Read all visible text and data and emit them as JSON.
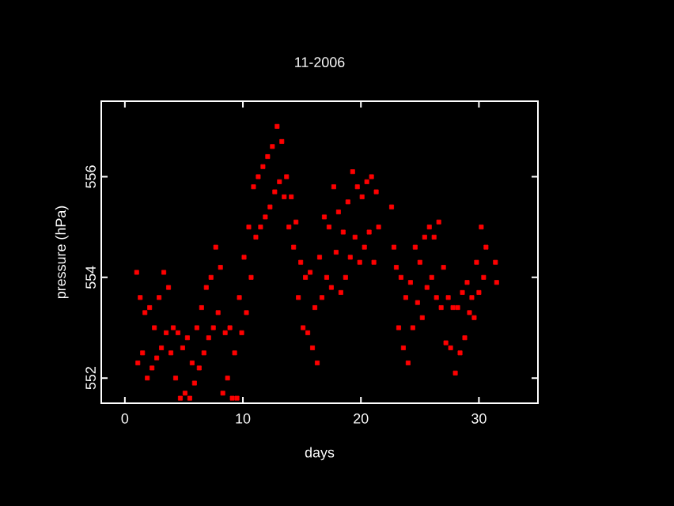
{
  "chart_data": {
    "type": "scatter",
    "title": "11-2006",
    "xlabel": "days",
    "ylabel": "pressure (hPa)",
    "xlim": [
      -2,
      35
    ],
    "ylim": [
      551.5,
      557.5
    ],
    "xticks": [
      0,
      10,
      20,
      30
    ],
    "yticks": [
      552,
      554,
      556
    ],
    "marker": "square",
    "grid": false,
    "series": [
      {
        "color": "#ff0000",
        "x": [
          1.0,
          1.1,
          1.3,
          1.5,
          1.7,
          1.9,
          2.1,
          2.3,
          2.5,
          2.7,
          2.9,
          3.1,
          3.3,
          3.5,
          3.7,
          3.9,
          4.1,
          4.3,
          4.5,
          4.7,
          4.9,
          5.1,
          5.3,
          5.5,
          5.7,
          5.9,
          6.1,
          6.3,
          6.5,
          6.7,
          6.9,
          7.1,
          7.3,
          7.5,
          7.7,
          7.9,
          8.1,
          8.3,
          8.5,
          8.7,
          8.9,
          9.1,
          9.3,
          9.5,
          9.7,
          9.9,
          10.1,
          10.3,
          10.5,
          10.7,
          10.9,
          11.1,
          11.3,
          11.5,
          11.7,
          11.9,
          12.1,
          12.3,
          12.5,
          12.7,
          12.9,
          13.1,
          13.3,
          13.5,
          13.7,
          13.9,
          14.1,
          14.3,
          14.5,
          14.7,
          14.9,
          15.1,
          15.3,
          15.5,
          15.7,
          15.9,
          16.1,
          16.3,
          16.5,
          16.7,
          16.9,
          17.1,
          17.3,
          17.5,
          17.7,
          17.9,
          18.1,
          18.3,
          18.5,
          18.7,
          18.9,
          19.1,
          19.3,
          19.5,
          19.7,
          19.9,
          20.1,
          20.3,
          20.5,
          20.7,
          20.9,
          21.1,
          21.3,
          21.5,
          22.6,
          22.8,
          23.0,
          23.2,
          23.4,
          23.6,
          23.8,
          24.0,
          24.2,
          24.4,
          24.6,
          24.8,
          25.0,
          25.2,
          25.4,
          25.6,
          25.8,
          26.0,
          26.2,
          26.4,
          26.6,
          26.8,
          27.0,
          27.2,
          27.4,
          27.6,
          27.8,
          28.0,
          28.2,
          28.4,
          28.6,
          28.8,
          29.0,
          29.2,
          29.4,
          29.6,
          29.8,
          30.0,
          30.2,
          30.4,
          30.6,
          31.4,
          31.5
        ],
        "values": [
          554.1,
          552.3,
          553.6,
          552.5,
          553.3,
          552.0,
          553.4,
          552.2,
          553.0,
          552.4,
          553.6,
          552.6,
          554.1,
          552.9,
          553.8,
          552.5,
          553.0,
          552.0,
          552.9,
          551.6,
          552.6,
          551.7,
          552.8,
          551.6,
          552.3,
          551.9,
          553.0,
          552.2,
          553.4,
          552.5,
          553.8,
          552.8,
          554.0,
          553.0,
          554.6,
          553.3,
          554.2,
          551.7,
          552.9,
          552.0,
          553.0,
          551.6,
          552.5,
          551.6,
          553.6,
          552.9,
          554.4,
          553.3,
          555.0,
          554.0,
          555.8,
          554.8,
          556.0,
          555.0,
          556.2,
          555.2,
          556.4,
          555.4,
          556.6,
          555.7,
          557.0,
          555.9,
          556.7,
          555.6,
          556.0,
          555.0,
          555.6,
          554.6,
          555.1,
          553.6,
          554.3,
          553.0,
          554.0,
          552.9,
          554.1,
          552.6,
          553.4,
          552.3,
          554.4,
          553.6,
          555.2,
          554.0,
          555.0,
          553.8,
          555.8,
          554.5,
          555.3,
          553.7,
          554.9,
          554.0,
          555.5,
          554.4,
          556.1,
          554.8,
          555.8,
          554.3,
          555.6,
          554.6,
          555.9,
          554.9,
          556.0,
          554.3,
          555.7,
          555.0,
          555.4,
          554.6,
          554.2,
          553.0,
          554.0,
          552.6,
          553.6,
          552.3,
          553.9,
          553.0,
          554.6,
          553.5,
          554.3,
          553.2,
          554.8,
          553.8,
          555.0,
          554.0,
          554.8,
          553.6,
          555.1,
          553.4,
          554.2,
          552.7,
          553.6,
          552.6,
          553.4,
          552.1,
          553.4,
          552.5,
          553.7,
          552.8,
          553.9,
          553.3,
          553.6,
          553.2,
          554.3,
          553.7,
          555.0,
          554.0,
          554.6,
          554.3,
          553.9
        ]
      }
    ]
  }
}
